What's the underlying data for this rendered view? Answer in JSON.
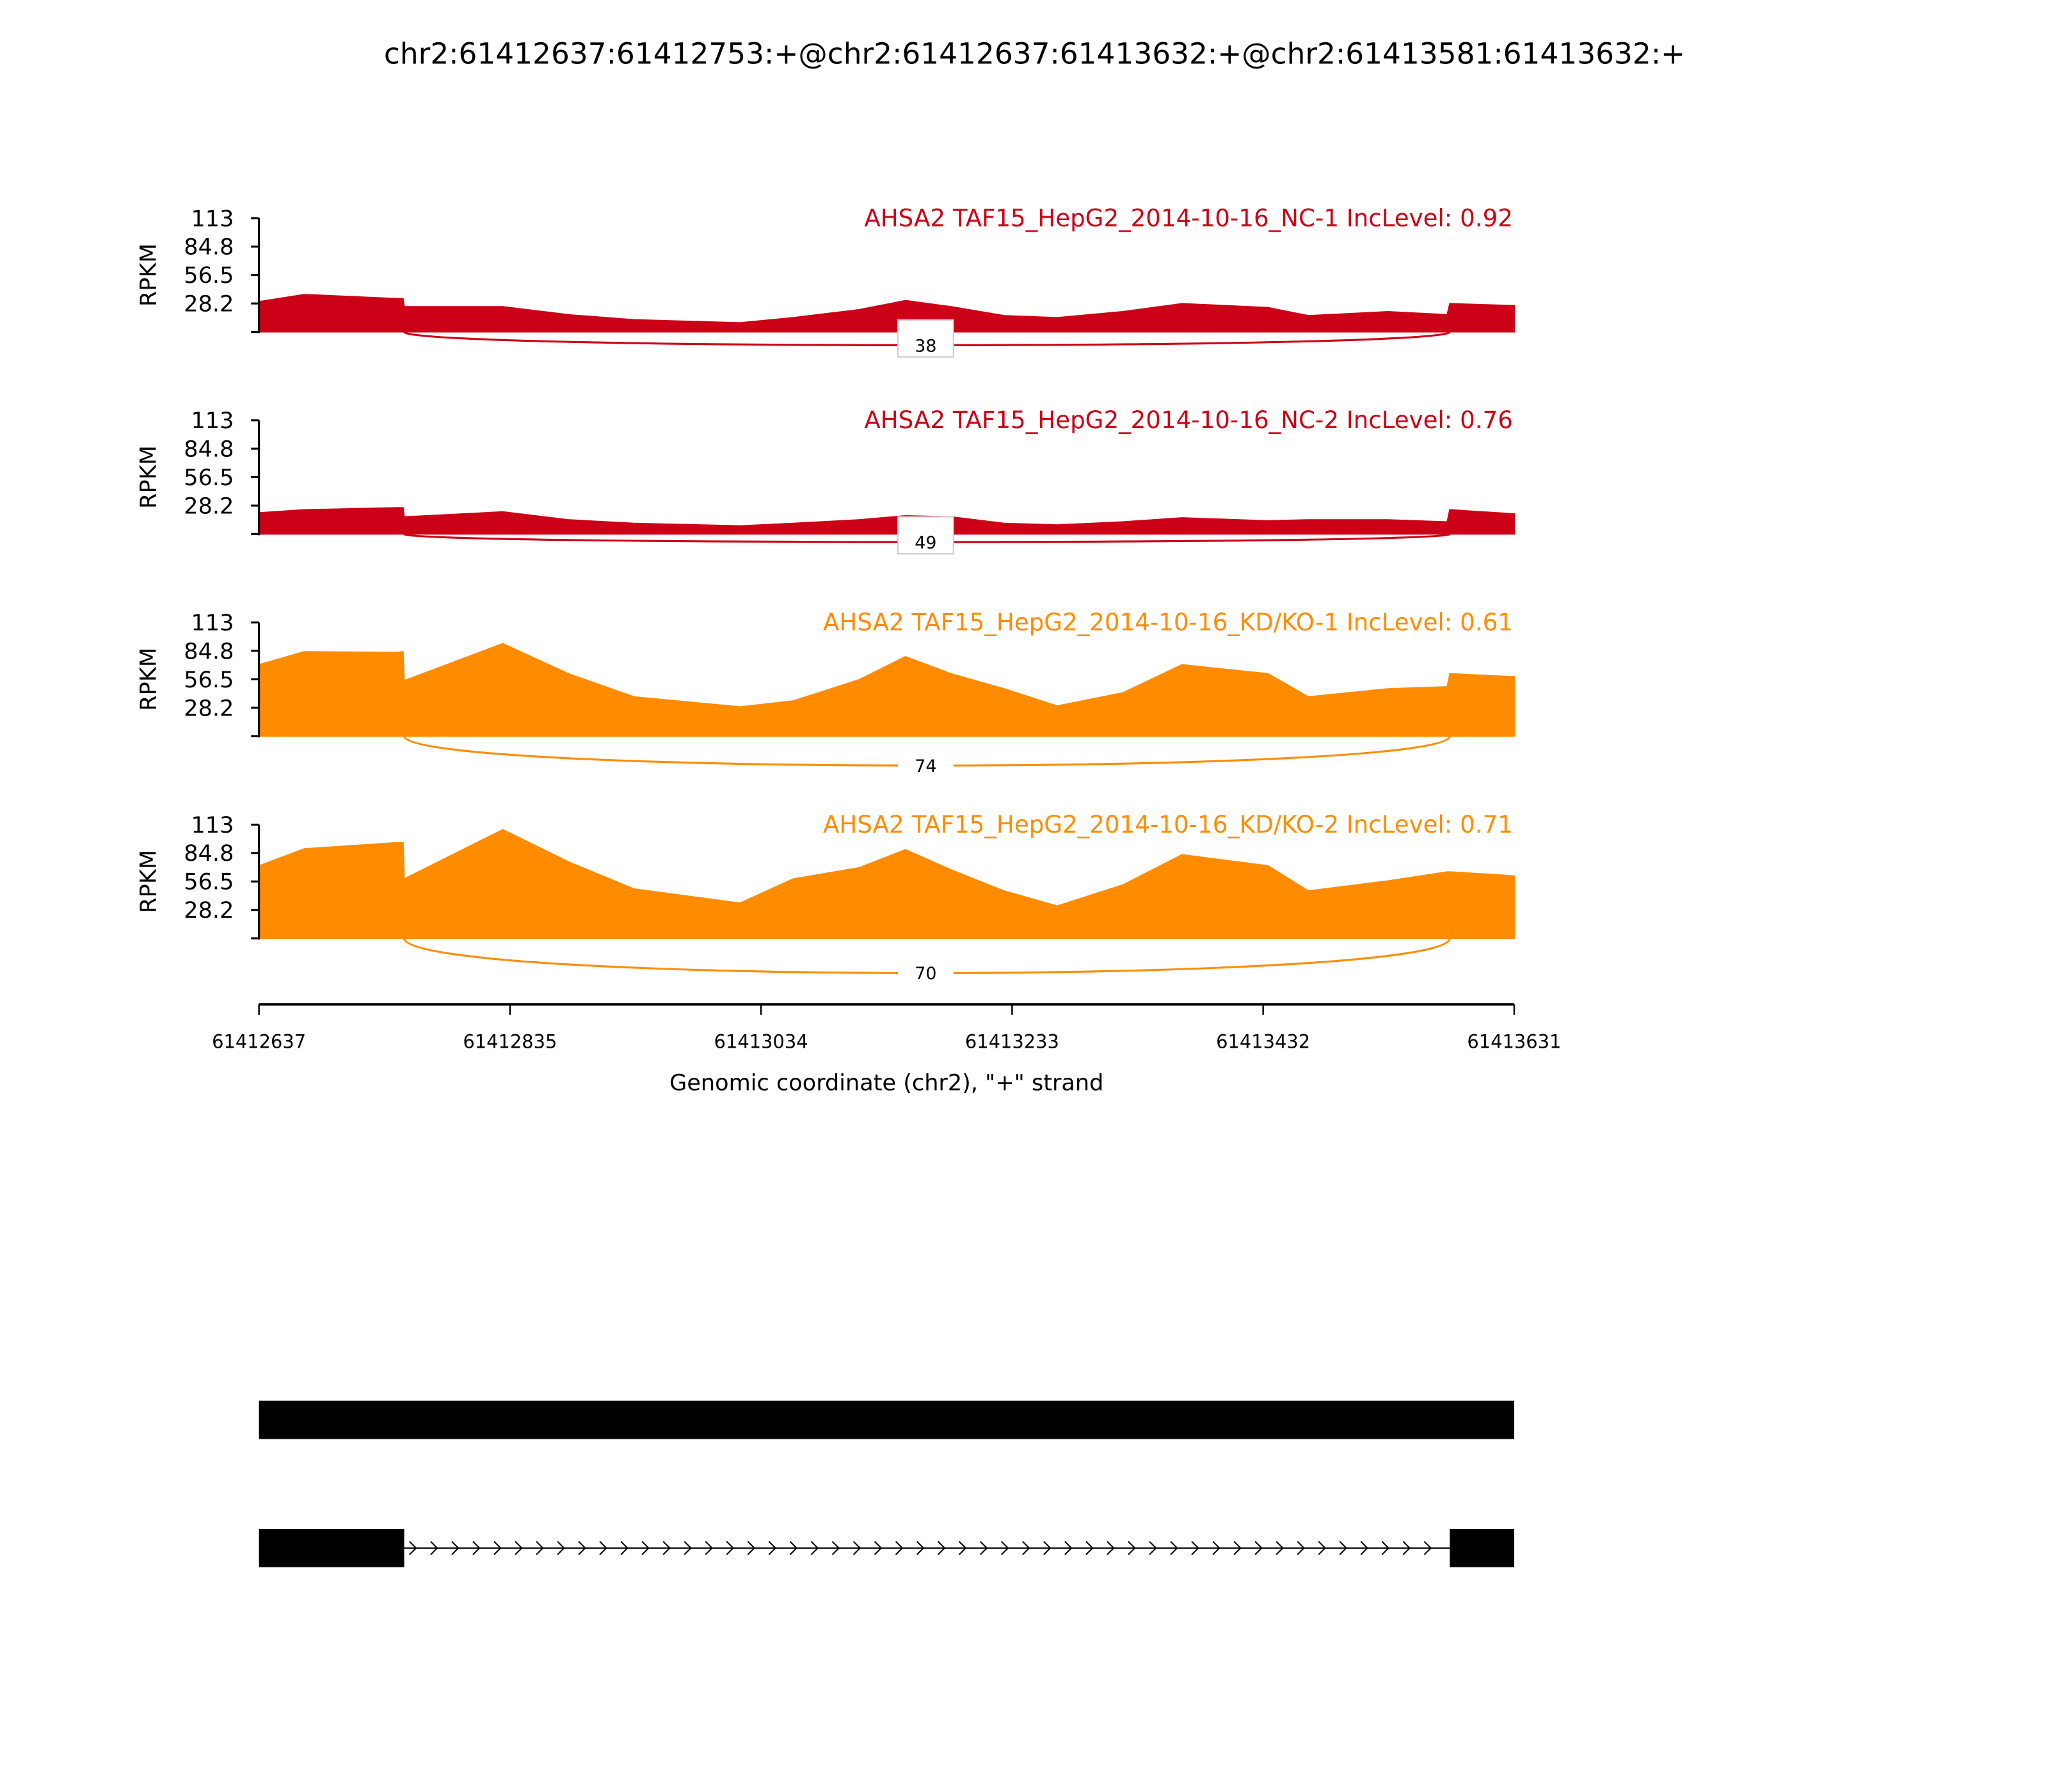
{
  "chart_data": {
    "type": "area",
    "title": "chr2:61412637:61412753:+@chr2:61412637:61413632:+@chr2:61413581:61413632:+",
    "xlabel": "Genomic coordinate (chr2), \"+\" strand",
    "ylabel": "RPKM",
    "xlim": [
      61412637,
      61413631
    ],
    "ylim": [
      0,
      113
    ],
    "xticks": [
      "61412637",
      "61412835",
      "61413034",
      "61413233",
      "61413432",
      "61413631"
    ],
    "yticks": [
      "113",
      "84.8",
      "56.5",
      "28.2"
    ],
    "junction": {
      "start": 61412752,
      "end": 61413580
    },
    "positions": [
      61412637,
      61412673,
      61412746,
      61412751,
      61412752,
      61412830,
      61412882,
      61412934,
      61413018,
      61413060,
      61413112,
      61413149,
      61413185,
      61413227,
      61413269,
      61413321,
      61413368,
      61413436,
      61413468,
      61413531,
      61413578,
      61413580,
      61413631
    ],
    "series": [
      {
        "name": "AHSA2 TAF15_HepG2_2014-10-16_NC-1 IncLevel: 0.92",
        "color": "#cc0016",
        "junction_count": "38",
        "values": [
          30,
          37,
          33,
          33,
          25,
          25,
          17,
          12,
          9,
          14,
          22,
          31,
          25,
          16,
          14,
          20,
          28,
          24,
          16,
          20,
          17,
          28,
          26
        ]
      },
      {
        "name": "AHSA2 TAF15_HepG2_2014-10-16_NC-2 IncLevel: 0.76",
        "color": "#cc0016",
        "junction_count": "49",
        "values": [
          21,
          24,
          26,
          26,
          17,
          22,
          14,
          10.5,
          8,
          10.5,
          14,
          18,
          17,
          10.5,
          9,
          12,
          16,
          13,
          14,
          14,
          12,
          24,
          20
        ]
      },
      {
        "name": "AHSA2 TAF15_HepG2_2014-10-16_KD/KO-1 IncLevel: 0.61",
        "color": "#ff8c00",
        "junction_count": "74",
        "values": [
          71,
          84,
          83,
          84,
          55,
          92,
          62,
          39,
          29,
          35,
          56,
          79,
          62,
          47,
          30,
          43,
          71,
          62,
          39,
          47,
          49,
          62,
          59
        ]
      },
      {
        "name": "AHSA2 TAF15_HepG2_2014-10-16_KD/KO-2 IncLevel: 0.71",
        "color": "#ff8c00",
        "junction_count": "70",
        "values": [
          72,
          89,
          95,
          95,
          59,
          108,
          76,
          49,
          35,
          59,
          70,
          88,
          68,
          47,
          32,
          53,
          83,
          72,
          47,
          57,
          66,
          66,
          62
        ]
      }
    ],
    "gene_models": [
      {
        "exons": [
          [
            61412637,
            61413631
          ]
        ]
      },
      {
        "exons": [
          [
            61412637,
            61412752
          ],
          [
            61413580,
            61413631
          ]
        ],
        "intron_strand": "+"
      }
    ]
  }
}
